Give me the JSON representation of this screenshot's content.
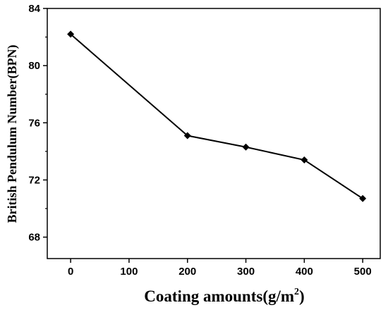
{
  "chart_data": {
    "type": "line",
    "title": "",
    "xlabel": "Coating amounts(g/m",
    "xlabel_sup": "2",
    "xlabel_end": ")",
    "ylabel": "British Pendulum Number(BPN)",
    "xlim": [
      -40,
      530
    ],
    "ylim": [
      66.5,
      84
    ],
    "xticks": [
      0,
      100,
      200,
      300,
      400,
      500
    ],
    "yticks": [
      68,
      72,
      76,
      80,
      84
    ],
    "grid": false,
    "legend": "none",
    "marker": "diamond",
    "color": "#000000",
    "series": [
      {
        "x": [
          0,
          200,
          300,
          400,
          500
        ],
        "y": [
          82.2,
          75.1,
          74.3,
          73.4,
          70.7
        ]
      }
    ]
  }
}
